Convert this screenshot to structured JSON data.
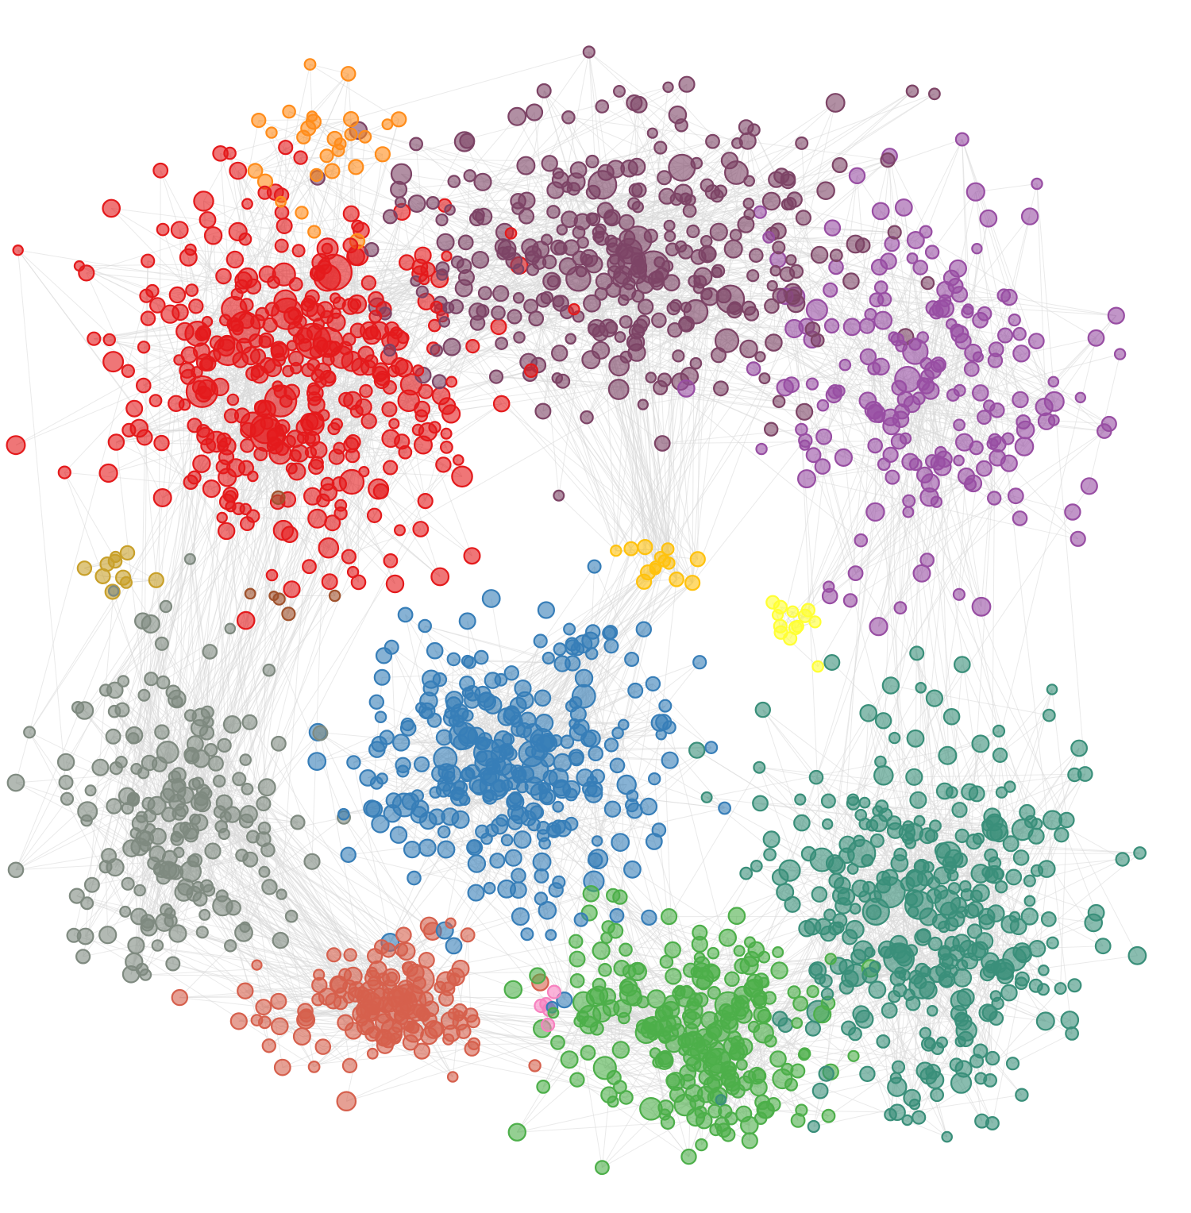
{
  "clusters": [
    {
      "color": "#e41a1c"
    },
    {
      "color": "#7d4466"
    },
    {
      "color": "#984ea3"
    },
    {
      "color": "#ff8c1a"
    },
    {
      "color": "#377eb8"
    },
    {
      "color": "#7f8a80"
    },
    {
      "color": "#d6604d"
    },
    {
      "color": "#4daf4a"
    },
    {
      "color": "#3a8f7a"
    },
    {
      "color": "#ffc20e"
    },
    {
      "color": "#ffff33"
    },
    {
      "color": "#c8a02a"
    },
    {
      "color": "#f781bf"
    },
    {
      "color": "#a0522d"
    }
  ]
}
